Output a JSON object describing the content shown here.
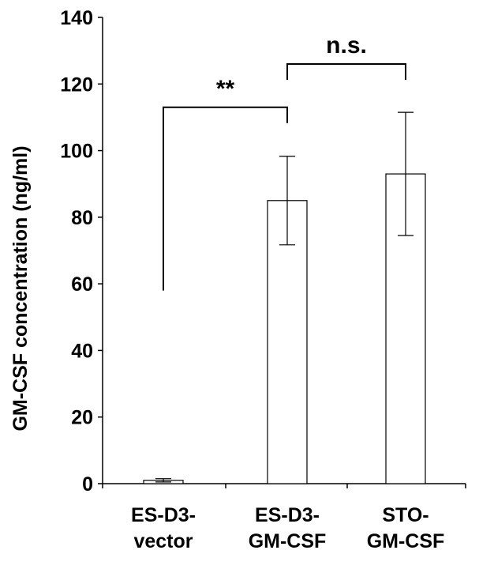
{
  "chart_data": {
    "type": "bar",
    "title": "",
    "xlabel": "",
    "ylabel": "GM-CSF concentration (ng/ml)",
    "ylim": [
      0,
      140
    ],
    "yticks": [
      "0",
      "20",
      "40",
      "60",
      "80",
      "100",
      "120",
      "140"
    ],
    "grid": false,
    "categories": [
      [
        "ES-D3-",
        "vector"
      ],
      [
        "ES-D3-",
        "GM-CSF"
      ],
      [
        "STO-",
        "GM-CSF"
      ]
    ],
    "values": [
      1.0,
      85.0,
      93.0
    ],
    "errors": [
      0.5,
      13.3,
      18.5
    ],
    "bar_fill": "#ffffff",
    "bar_stroke": "#000000",
    "significance": [
      {
        "from": 0,
        "to": 1,
        "label": "**",
        "y_low": 58,
        "y_high": 113
      },
      {
        "from": 1,
        "to": 2,
        "label": "n.s.",
        "y_low": 122,
        "y_high": 126
      }
    ]
  }
}
